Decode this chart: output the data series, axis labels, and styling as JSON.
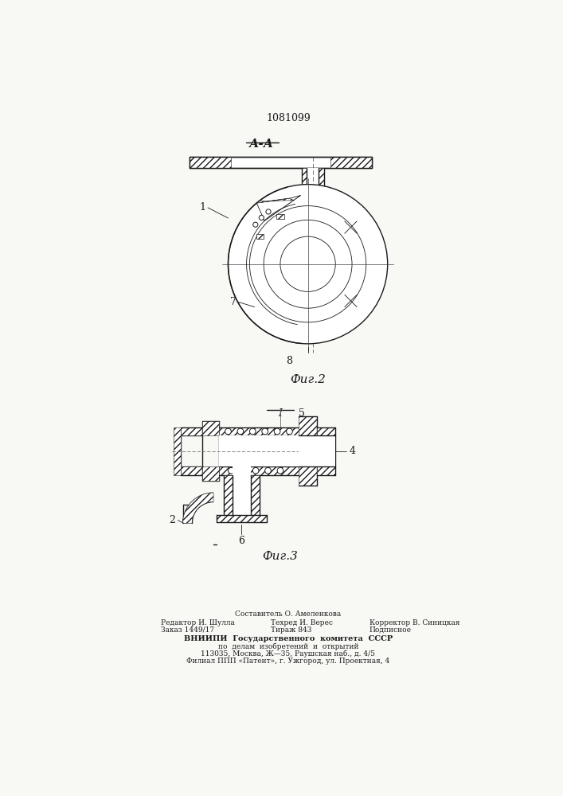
{
  "patent_number": "1081099",
  "background_color": "#f8f8f5",
  "line_color": "#1a1a1a",
  "fig2_label": "Фиг.2",
  "fig3_label": "Фиг.3",
  "section_label": "А-А",
  "label_I": "I",
  "label_5": "5",
  "label_1": "1",
  "label_7": "7",
  "label_8": "8",
  "label_2": "2",
  "label_4": "4",
  "label_6": "6",
  "footer_line1": "Составитель О. Амеленкова",
  "footer_line2_left": "Редактор И. Шулла",
  "footer_line2_mid": "Техред И. Верес",
  "footer_line2_right": "Корректор В. Синицкая",
  "footer_line3_left": "Заказ 1449/17",
  "footer_line3_mid": "Тираж 843",
  "footer_line3_right": "Подписное",
  "footer_line4": "ВНИИПИ  Государственного  комитета  СССР",
  "footer_line5": "по  делам  изобретений  и  открытий",
  "footer_line6": "113035, Москва, Ж—35, Раушская наб., д. 4/5",
  "footer_line7": "Филиал ППП «Патент», г. Ужгород, ул. Проектная, 4"
}
